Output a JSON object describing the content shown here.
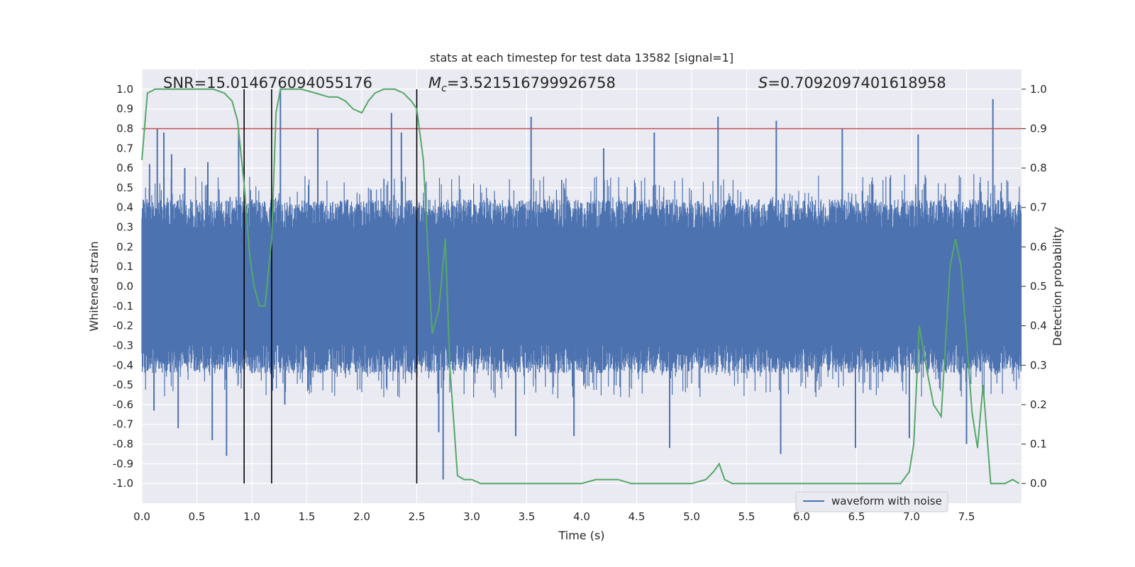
{
  "chart_data": {
    "type": "line",
    "title": "stats at each timestep for test data 13582 [signal=1]",
    "xlabel": "Time (s)",
    "ylabel": "Whitened strain",
    "y2label": "Detection probability",
    "xlim": [
      0.0,
      8.0
    ],
    "ylim": [
      -1.1,
      1.1
    ],
    "y2lim": [
      -0.05,
      1.05
    ],
    "x_ticks": [
      "0.0",
      "0.5",
      "1.0",
      "1.5",
      "2.0",
      "2.5",
      "3.0",
      "3.5",
      "4.0",
      "4.5",
      "5.0",
      "5.5",
      "6.0",
      "6.5",
      "7.0",
      "7.5"
    ],
    "y_ticks": [
      "1.0",
      "0.9",
      "0.8",
      "0.7",
      "0.6",
      "0.5",
      "0.4",
      "0.3",
      "0.2",
      "0.1",
      "0.0",
      "-0.1",
      "-0.2",
      "-0.3",
      "-0.4",
      "-0.5",
      "-0.6",
      "-0.7",
      "-0.8",
      "-0.9",
      "-1.0"
    ],
    "y2_ticks": [
      "1.0",
      "0.9",
      "0.8",
      "0.7",
      "0.6",
      "0.5",
      "0.4",
      "0.3",
      "0.2",
      "0.1",
      "0.0"
    ],
    "annotations": {
      "snr": "SNR=15.014676094055176",
      "mc_label": "M",
      "mc_sub": "c",
      "mc_value": "=3.521516799926758",
      "s_label": "S",
      "s_value": "=0.7092097401618958"
    },
    "legend": {
      "label": "waveform with noise",
      "position": "lower-right"
    },
    "threshold": {
      "value": 0.9,
      "axis": "right",
      "color": "#c44e52"
    },
    "event_lines_x": [
      0.93,
      1.18,
      2.5
    ],
    "event_lines_range": [
      -1.0,
      1.0
    ],
    "series": [
      {
        "name": "waveform with noise",
        "color": "#4c72b0",
        "envelope_upper": 0.45,
        "envelope_lower": -0.45,
        "spikes": [
          {
            "x": 0.07,
            "y": 0.62
          },
          {
            "x": 0.14,
            "y": 0.8
          },
          {
            "x": 0.2,
            "y": 0.78
          },
          {
            "x": 0.27,
            "y": 0.67
          },
          {
            "x": 0.39,
            "y": 0.6
          },
          {
            "x": 0.6,
            "y": 0.63
          },
          {
            "x": 0.88,
            "y": 0.8
          },
          {
            "x": 1.26,
            "y": 1.0
          },
          {
            "x": 1.6,
            "y": 0.8
          },
          {
            "x": 2.27,
            "y": 0.88
          },
          {
            "x": 2.36,
            "y": 0.78
          },
          {
            "x": 3.54,
            "y": 0.86
          },
          {
            "x": 4.2,
            "y": 0.7
          },
          {
            "x": 4.66,
            "y": 0.78
          },
          {
            "x": 5.24,
            "y": 0.86
          },
          {
            "x": 5.77,
            "y": 0.84
          },
          {
            "x": 6.37,
            "y": 0.8
          },
          {
            "x": 7.06,
            "y": 0.77
          },
          {
            "x": 7.74,
            "y": 0.95
          },
          {
            "x": 0.11,
            "y": -0.63
          },
          {
            "x": 0.33,
            "y": -0.72
          },
          {
            "x": 0.64,
            "y": -0.78
          },
          {
            "x": 0.77,
            "y": -0.86
          },
          {
            "x": 1.3,
            "y": -0.6
          },
          {
            "x": 2.7,
            "y": -0.74
          },
          {
            "x": 2.74,
            "y": -0.98
          },
          {
            "x": 3.4,
            "y": -0.76
          },
          {
            "x": 3.93,
            "y": -0.76
          },
          {
            "x": 4.8,
            "y": -0.82
          },
          {
            "x": 5.81,
            "y": -0.85
          },
          {
            "x": 6.49,
            "y": -0.82
          },
          {
            "x": 6.98,
            "y": -0.77
          },
          {
            "x": 7.5,
            "y": -0.8
          }
        ]
      },
      {
        "name": "",
        "color": "#55a868",
        "axis": "right",
        "x": [
          0.0,
          0.05,
          0.12,
          0.2,
          0.35,
          0.5,
          0.65,
          0.75,
          0.82,
          0.87,
          0.93,
          0.98,
          1.02,
          1.07,
          1.12,
          1.18,
          1.22,
          1.26,
          1.33,
          1.45,
          1.58,
          1.7,
          1.78,
          1.85,
          1.92,
          2.0,
          2.06,
          2.12,
          2.2,
          2.3,
          2.38,
          2.45,
          2.5,
          2.56,
          2.6,
          2.64,
          2.7,
          2.76,
          2.8,
          2.87,
          2.93,
          3.0,
          3.08,
          3.15,
          3.3,
          3.45,
          3.55,
          3.7,
          3.85,
          4.0,
          4.13,
          4.23,
          4.33,
          4.45,
          4.6,
          4.8,
          5.0,
          5.13,
          5.2,
          5.25,
          5.3,
          5.37,
          5.6,
          5.8,
          6.0,
          6.5,
          6.9,
          6.98,
          7.02,
          7.07,
          7.13,
          7.2,
          7.27,
          7.35,
          7.4,
          7.45,
          7.55,
          7.6,
          7.65,
          7.72,
          7.78,
          7.85,
          7.92,
          7.98
        ],
        "y": [
          0.82,
          0.99,
          1.0,
          1.0,
          1.0,
          1.0,
          1.0,
          0.99,
          0.97,
          0.92,
          0.76,
          0.58,
          0.5,
          0.45,
          0.45,
          0.62,
          0.94,
          1.0,
          1.0,
          1.0,
          0.99,
          0.98,
          0.98,
          0.97,
          0.95,
          0.94,
          0.97,
          0.99,
          1.0,
          1.0,
          0.99,
          0.97,
          0.95,
          0.82,
          0.6,
          0.38,
          0.44,
          0.62,
          0.3,
          0.02,
          0.01,
          0.01,
          0.0,
          0.0,
          0.0,
          0.0,
          0.0,
          0.0,
          0.0,
          0.0,
          0.01,
          0.01,
          0.01,
          0.0,
          0.0,
          0.0,
          0.0,
          0.01,
          0.03,
          0.05,
          0.01,
          0.0,
          0.0,
          0.0,
          0.0,
          0.0,
          0.0,
          0.03,
          0.1,
          0.4,
          0.3,
          0.2,
          0.17,
          0.55,
          0.62,
          0.55,
          0.18,
          0.09,
          0.25,
          0.0,
          0.0,
          0.0,
          0.01,
          0.0
        ]
      }
    ]
  }
}
